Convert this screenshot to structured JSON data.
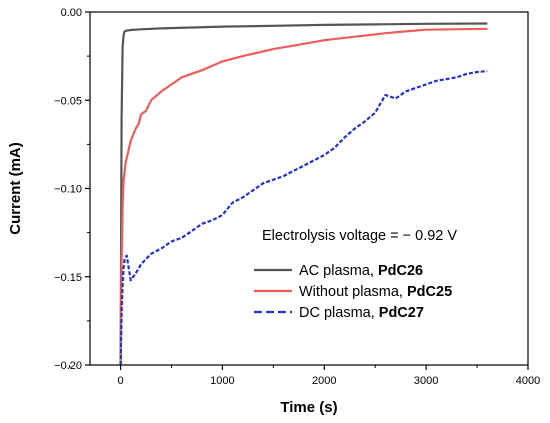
{
  "chart_data": {
    "type": "line",
    "xlabel": "Time (s)",
    "ylabel": "Current (mA)",
    "xlim": [
      -300,
      4000
    ],
    "ylim": [
      -0.2,
      0.0
    ],
    "x_ticks": [
      0,
      1000,
      2000,
      3000,
      4000
    ],
    "y_ticks": [
      0.0,
      -0.05,
      -0.1,
      -0.15,
      -0.2
    ],
    "x_tick_labels": [
      "0",
      "1000",
      "2000",
      "3000",
      "4000"
    ],
    "y_tick_labels": [
      "0.00",
      "−0.05",
      "−0.10",
      "−0.15",
      "−0.20"
    ],
    "grid": false,
    "legend_position": "bottom-right",
    "annotation": "Electrolysis voltage = − 0.92 V",
    "series": [
      {
        "name": "AC plasma, ",
        "name_bold": "PdC26",
        "color": "#555555",
        "style": "solid",
        "x": [
          0,
          10,
          20,
          30,
          40,
          60,
          100,
          200,
          400,
          700,
          1000,
          1500,
          2000,
          2500,
          3000,
          3600
        ],
        "y": [
          -0.2,
          -0.06,
          -0.02,
          -0.013,
          -0.011,
          -0.0105,
          -0.0102,
          -0.0098,
          -0.0093,
          -0.0088,
          -0.0083,
          -0.0078,
          -0.0073,
          -0.007,
          -0.0067,
          -0.0065
        ]
      },
      {
        "name": "Without plasma, ",
        "name_bold": "PdC25",
        "color": "#ee5c5c",
        "style": "solid",
        "x": [
          0,
          10,
          20,
          30,
          50,
          80,
          100,
          120,
          150,
          180,
          200,
          250,
          300,
          400,
          500,
          600,
          800,
          1000,
          1200,
          1500,
          1800,
          2000,
          2300,
          2600,
          2800,
          2900,
          3000,
          3600
        ],
        "y": [
          -0.2,
          -0.14,
          -0.11,
          -0.095,
          -0.085,
          -0.078,
          -0.073,
          -0.07,
          -0.066,
          -0.063,
          -0.058,
          -0.056,
          -0.05,
          -0.045,
          -0.041,
          -0.037,
          -0.033,
          -0.028,
          -0.025,
          -0.021,
          -0.018,
          -0.016,
          -0.014,
          -0.012,
          -0.011,
          -0.0105,
          -0.01,
          -0.0095
        ]
      },
      {
        "name": "DC plasma, ",
        "name_bold": "PdC27",
        "color": "#2233cc",
        "style": "dashed",
        "x": [
          0,
          10,
          20,
          30,
          40,
          60,
          80,
          100,
          150,
          200,
          300,
          400,
          500,
          600,
          700,
          800,
          900,
          1000,
          1100,
          1200,
          1300,
          1400,
          1500,
          1600,
          1700,
          1800,
          1900,
          2000,
          2100,
          2200,
          2300,
          2400,
          2500,
          2600,
          2700,
          2800,
          2900,
          3000,
          3100,
          3200,
          3300,
          3400,
          3500,
          3600
        ],
        "y": [
          -0.2,
          -0.17,
          -0.155,
          -0.145,
          -0.14,
          -0.138,
          -0.145,
          -0.152,
          -0.148,
          -0.143,
          -0.137,
          -0.134,
          -0.13,
          -0.128,
          -0.124,
          -0.12,
          -0.118,
          -0.115,
          -0.108,
          -0.105,
          -0.101,
          -0.097,
          -0.095,
          -0.093,
          -0.09,
          -0.087,
          -0.084,
          -0.081,
          -0.077,
          -0.071,
          -0.066,
          -0.062,
          -0.057,
          -0.047,
          -0.049,
          -0.045,
          -0.043,
          -0.041,
          -0.039,
          -0.038,
          -0.037,
          -0.035,
          -0.034,
          -0.0335
        ]
      }
    ]
  }
}
